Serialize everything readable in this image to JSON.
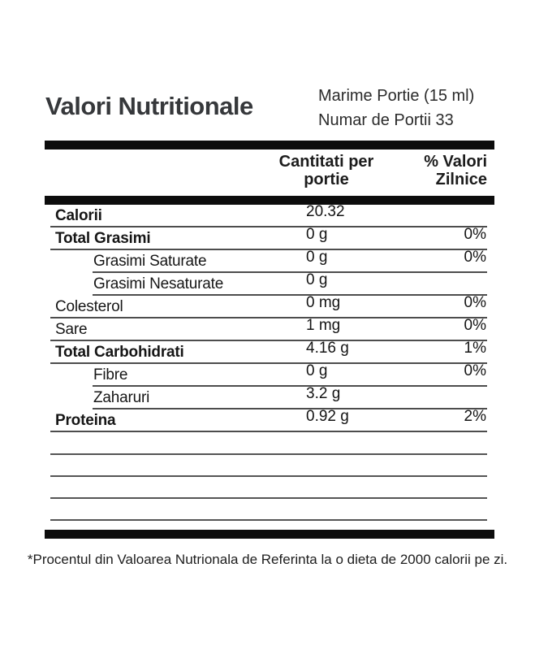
{
  "title": "Valori Nutritionale",
  "serving": {
    "size": "Marime Portie (15 ml)",
    "count": "Numar de Portii 33"
  },
  "columns": {
    "amount_line1": "Cantitati per",
    "amount_line2": "portie",
    "daily_line1": "% Valori",
    "daily_line2": "Zilnice"
  },
  "rows": [
    {
      "label": "Calorii",
      "amount": "20.32",
      "daily": ""
    },
    {
      "label": "Total Grasimi",
      "amount": "0 g",
      "daily": "0%"
    },
    {
      "label": "Grasimi Saturate",
      "amount": "0 g",
      "daily": "0%"
    },
    {
      "label": "Grasimi Nesaturate",
      "amount": "0 g",
      "daily": ""
    },
    {
      "label": "Colesterol",
      "amount": "0 mg",
      "daily": "0%"
    },
    {
      "label": "Sare",
      "amount": "1 mg",
      "daily": "0%"
    },
    {
      "label": "Total Carbohidrati",
      "amount": "4.16 g",
      "daily": "1%"
    },
    {
      "label": "Fibre",
      "amount": "0 g",
      "daily": "0%"
    },
    {
      "label": "Zaharuri",
      "amount": "3.2 g",
      "daily": ""
    },
    {
      "label": "Proteina",
      "amount": "0.92 g",
      "daily": "2%"
    }
  ],
  "footnote": "*Procentul din Valoarea Nutrionala de Referinta la o dieta de 2000 calorii pe zi.",
  "colors": {
    "bar": "#0d0d0d",
    "rule_line": "#4d4d4d",
    "text": "#1b1b1b",
    "title": "#36383b"
  }
}
